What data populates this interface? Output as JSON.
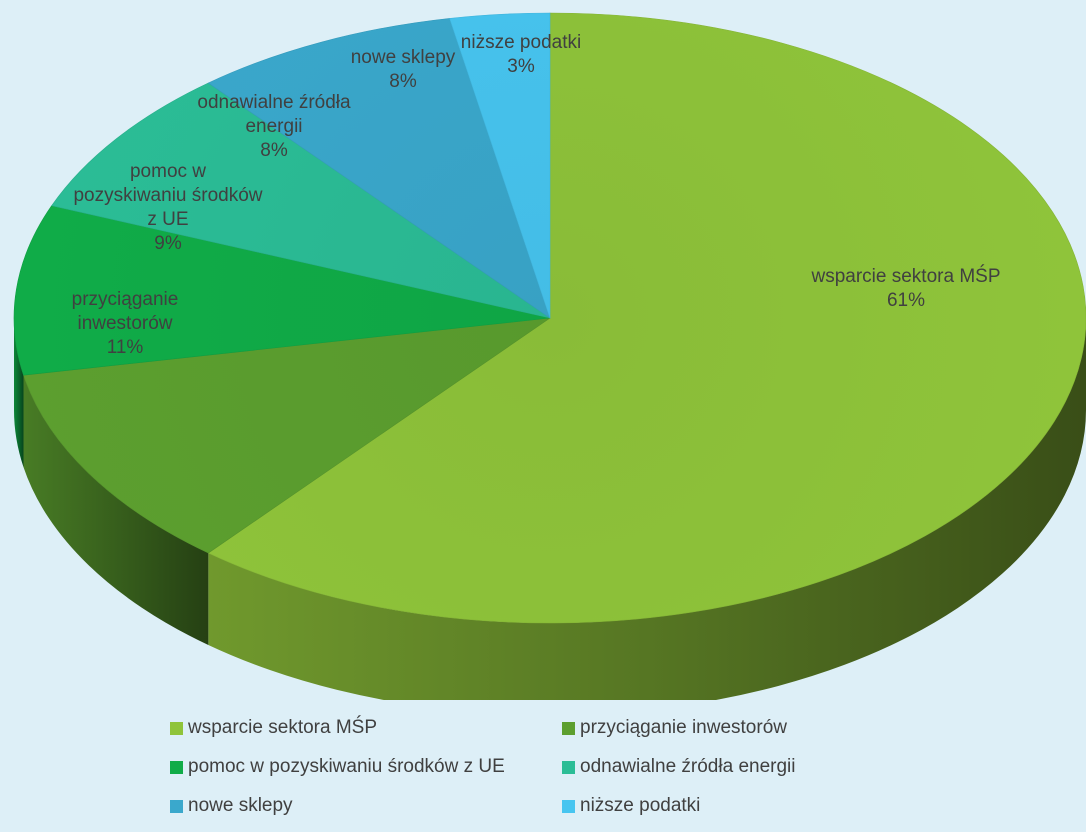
{
  "chart_data": {
    "type": "pie",
    "style": "3d",
    "title": "",
    "unit": "%",
    "categories": [
      "wsparcie sektora MŚP",
      "przyciąganie inwestorów",
      "pomoc w pozyskiwaniu środków z UE",
      "odnawialne źródła energii",
      "nowe sklepy",
      "niższe podatki"
    ],
    "values": [
      61,
      11,
      9,
      8,
      8,
      3
    ],
    "data_labels": [
      [
        "wsparcie sektora MŚP",
        "61%"
      ],
      [
        "przyciąganie",
        "inwestorów",
        "11%"
      ],
      [
        "pomoc w",
        "pozyskiwaniu środków",
        "z UE",
        "9%"
      ],
      [
        "odnawialne źródła",
        "energii",
        "8%"
      ],
      [
        "nowe sklepy",
        "8%"
      ],
      [
        "niższe podatki",
        "3%"
      ]
    ],
    "colors": [
      "#8fc43a",
      "#5c9f2f",
      "#10ac48",
      "#2bbd96",
      "#3aa8cc",
      "#47c5f0"
    ],
    "legend_position": "bottom",
    "legend_columns": 2
  }
}
